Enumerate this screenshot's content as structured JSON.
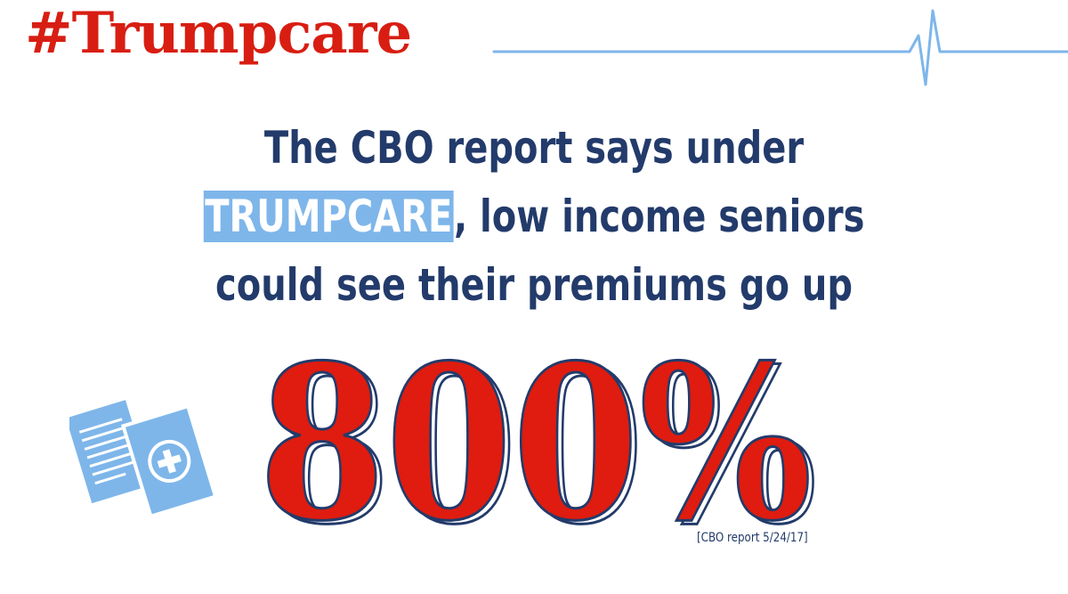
{
  "header": {
    "hashtag": "#Trumpcare"
  },
  "headline": {
    "line1": "The CBO report says under",
    "highlight": "TRUMPCARE",
    "line2_rest": ", low income seniors",
    "line3": "could see their premiums go up"
  },
  "stat": {
    "value": "800%"
  },
  "source": {
    "citation": "[CBO report 5/24/17]"
  },
  "decorations": {
    "pulse_line": "heartbeat-pulse-icon",
    "documents": "medical-documents-icon"
  },
  "colors": {
    "red": "#d81e12",
    "navy": "#233b6b",
    "light_blue": "#7eb6ea",
    "background": "#ffffff"
  }
}
